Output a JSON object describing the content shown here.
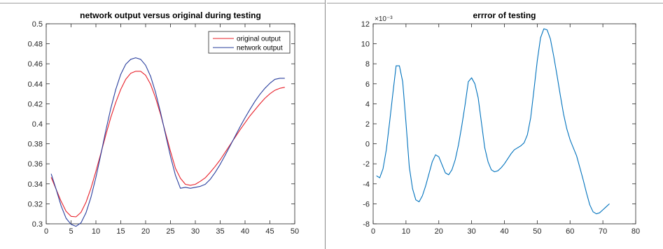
{
  "chart_data": [
    {
      "type": "line",
      "title": "network output versus original during testing",
      "xlabel": "",
      "ylabel": "",
      "xlim": [
        0,
        50
      ],
      "ylim": [
        0.3,
        0.5
      ],
      "xticks": [
        0,
        5,
        10,
        15,
        20,
        25,
        30,
        35,
        40,
        45,
        50
      ],
      "yticks": [
        0.3,
        0.32,
        0.34,
        0.36,
        0.38,
        0.4,
        0.42,
        0.44,
        0.46,
        0.48,
        0.5
      ],
      "xtick_labels": [
        "0",
        "5",
        "10",
        "15",
        "20",
        "25",
        "30",
        "35",
        "40",
        "45",
        "50"
      ],
      "ytick_labels": [
        "0.3",
        "0.32",
        "0.34",
        "0.36",
        "0.38",
        "0.4",
        "0.42",
        "0.44",
        "0.46",
        "0.48",
        "0.5"
      ],
      "grid": false,
      "legend_position": "top-right",
      "series": [
        {
          "name": "original output",
          "color": "#e8202a",
          "x": [
            1,
            2,
            3,
            4,
            5,
            6,
            7,
            8,
            9,
            10,
            11,
            12,
            13,
            14,
            15,
            16,
            17,
            18,
            19,
            20,
            21,
            22,
            23,
            24,
            25,
            26,
            27,
            28,
            29,
            30,
            31,
            32,
            33,
            34,
            35,
            36,
            37,
            38,
            39,
            40,
            41,
            42,
            43,
            44,
            45,
            46,
            47,
            48
          ],
          "y": [
            0.3465,
            0.3345,
            0.3225,
            0.3125,
            0.3075,
            0.307,
            0.3115,
            0.3215,
            0.3355,
            0.3525,
            0.3705,
            0.389,
            0.4065,
            0.4215,
            0.4345,
            0.4445,
            0.4505,
            0.4525,
            0.4525,
            0.4485,
            0.4395,
            0.426,
            0.4095,
            0.391,
            0.3725,
            0.3555,
            0.3455,
            0.3395,
            0.3385,
            0.3395,
            0.3425,
            0.346,
            0.3515,
            0.3575,
            0.364,
            0.3715,
            0.379,
            0.3865,
            0.394,
            0.401,
            0.408,
            0.414,
            0.42,
            0.4255,
            0.43,
            0.4335,
            0.4355,
            0.4365
          ]
        },
        {
          "name": "network output",
          "color": "#2a3f9e",
          "x": [
            1,
            2,
            3,
            4,
            5,
            6,
            7,
            8,
            9,
            10,
            11,
            12,
            13,
            14,
            15,
            16,
            17,
            18,
            19,
            20,
            21,
            22,
            23,
            24,
            25,
            26,
            27,
            28,
            29,
            30,
            31,
            32,
            33,
            34,
            35,
            36,
            37,
            38,
            39,
            40,
            41,
            42,
            43,
            44,
            45,
            46,
            47,
            48
          ],
          "y": [
            0.35,
            0.3345,
            0.318,
            0.3055,
            0.2995,
            0.2975,
            0.301,
            0.311,
            0.3265,
            0.3465,
            0.3695,
            0.3935,
            0.4155,
            0.4345,
            0.4495,
            0.4595,
            0.4645,
            0.466,
            0.4645,
            0.4585,
            0.4475,
            0.4315,
            0.4115,
            0.3895,
            0.3675,
            0.3485,
            0.3355,
            0.3365,
            0.3355,
            0.3365,
            0.3375,
            0.3395,
            0.3445,
            0.3515,
            0.3595,
            0.3685,
            0.378,
            0.3875,
            0.397,
            0.406,
            0.4145,
            0.4225,
            0.4295,
            0.4355,
            0.4405,
            0.4445,
            0.4455,
            0.4455
          ]
        }
      ]
    },
    {
      "type": "line",
      "title": "errror of testing",
      "xlabel": "",
      "ylabel": "",
      "y_exponent_label": "×10⁻³",
      "xlim": [
        0,
        80
      ],
      "ylim": [
        -8,
        12
      ],
      "xticks": [
        0,
        10,
        20,
        30,
        40,
        50,
        60,
        70,
        80
      ],
      "yticks": [
        -8,
        -6,
        -4,
        -2,
        0,
        2,
        4,
        6,
        8,
        10,
        12
      ],
      "xtick_labels": [
        "0",
        "10",
        "20",
        "30",
        "40",
        "50",
        "60",
        "70",
        "80"
      ],
      "ytick_labels": [
        "-8",
        "-6",
        "-4",
        "-2",
        "0",
        "2",
        "4",
        "6",
        "8",
        "10",
        "12"
      ],
      "grid": false,
      "series": [
        {
          "color": "#0072bd",
          "x": [
            1,
            2,
            3,
            4,
            5,
            6,
            7,
            8,
            9,
            10,
            11,
            12,
            13,
            14,
            15,
            16,
            17,
            18,
            19,
            20,
            21,
            22,
            23,
            24,
            25,
            26,
            27,
            28,
            29,
            30,
            31,
            32,
            33,
            34,
            35,
            36,
            37,
            38,
            39,
            40,
            41,
            42,
            43,
            44,
            45,
            46,
            47,
            48,
            49,
            50,
            51,
            52,
            53,
            54,
            55,
            56,
            57,
            58,
            59,
            60,
            61,
            62,
            63,
            64,
            65,
            66,
            67,
            68,
            69,
            70,
            71,
            72
          ],
          "y": [
            -3.2,
            -3.4,
            -2.5,
            -0.6,
            2.1,
            5.0,
            7.8,
            7.8,
            6.2,
            2.1,
            -2.3,
            -4.5,
            -5.6,
            -5.8,
            -5.2,
            -4.2,
            -3.0,
            -1.8,
            -1.1,
            -1.3,
            -2.1,
            -2.9,
            -3.1,
            -2.6,
            -1.6,
            -0.1,
            1.8,
            3.9,
            6.2,
            6.6,
            6.0,
            4.6,
            2.1,
            -0.4,
            -1.8,
            -2.6,
            -2.8,
            -2.7,
            -2.4,
            -2.0,
            -1.5,
            -1.0,
            -0.6,
            -0.4,
            -0.2,
            0.1,
            0.9,
            2.6,
            5.4,
            8.3,
            10.6,
            11.5,
            11.4,
            10.5,
            8.8,
            6.9,
            4.9,
            3.0,
            1.5,
            0.4,
            -0.4,
            -1.2,
            -2.4,
            -3.6,
            -4.9,
            -6.1,
            -6.8,
            -7.0,
            -6.9,
            -6.6,
            -6.3,
            -6.0
          ]
        }
      ]
    }
  ],
  "legend": {
    "items": [
      "original output",
      "network output"
    ]
  }
}
